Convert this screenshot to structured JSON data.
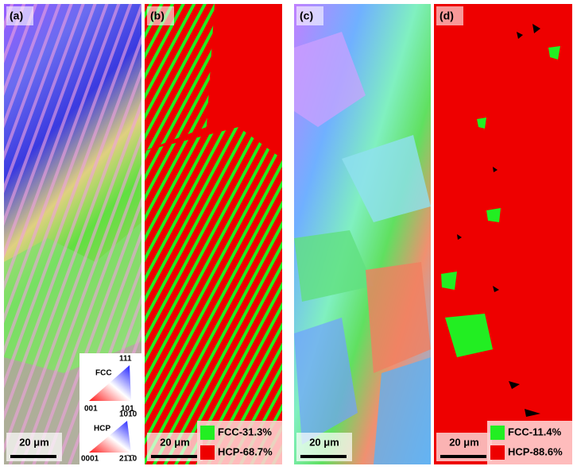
{
  "panels": [
    {
      "label": "(a)",
      "scale_bar": "20 μm",
      "ipf_key": {
        "fcc": {
          "title": "FCC",
          "top": "111",
          "left": "001",
          "right": "101"
        },
        "hcp": {
          "title": "HCP",
          "top": "101̄0",
          "left": "0001",
          "right": "21̄1̄0"
        }
      }
    },
    {
      "label": "(b)",
      "scale_bar": "20 μm",
      "legend": [
        {
          "text": "FCC-31.3%",
          "color": "#22ee22"
        },
        {
          "text": "HCP-68.7%",
          "color": "#ee0000"
        }
      ]
    },
    {
      "label": "(c)",
      "scale_bar": "20 μm"
    },
    {
      "label": "(d)",
      "scale_bar": "20 μm",
      "legend": [
        {
          "text": "FCC-11.4%",
          "color": "#22ee22"
        },
        {
          "text": "HCP-88.6%",
          "color": "#ee0000"
        }
      ]
    }
  ]
}
